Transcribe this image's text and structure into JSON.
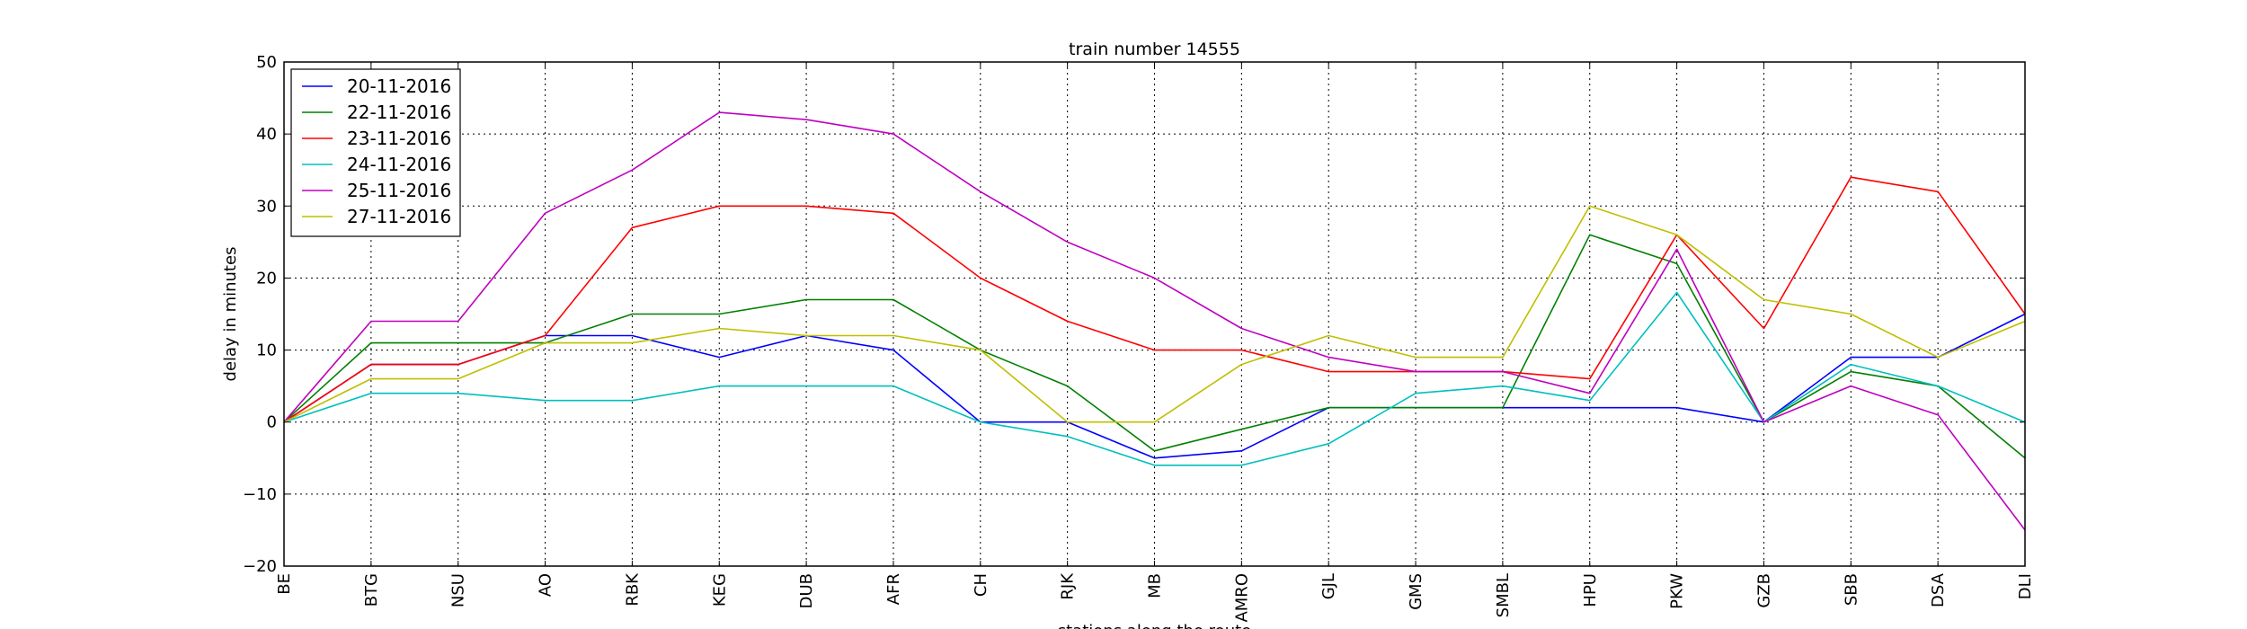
{
  "chart_data": {
    "type": "line",
    "title": "train number 14555",
    "xlabel": "stations along the route",
    "ylabel": "delay in minutes",
    "ylim": [
      -20,
      50
    ],
    "yticks": [
      -20,
      -10,
      0,
      10,
      20,
      30,
      40,
      50
    ],
    "grid": true,
    "legend_position": "top-left",
    "categories": [
      "BE",
      "BTG",
      "NSU",
      "AO",
      "RBK",
      "KEG",
      "DUB",
      "AFR",
      "CH",
      "RJK",
      "MB",
      "AMRO",
      "GJL",
      "GMS",
      "SMBL",
      "HPU",
      "PKW",
      "GZB",
      "SBB",
      "DSA",
      "DLI"
    ],
    "series": [
      {
        "name": "20-11-2016",
        "color": "#0000ff",
        "values": [
          0,
          8,
          8,
          12,
          12,
          9,
          12,
          10,
          0,
          0,
          -5,
          -4,
          2,
          2,
          2,
          2,
          2,
          0,
          9,
          9,
          15
        ]
      },
      {
        "name": "22-11-2016",
        "color": "#008000",
        "values": [
          0,
          11,
          11,
          11,
          15,
          15,
          17,
          17,
          10,
          5,
          -4,
          -1,
          2,
          2,
          2,
          26,
          22,
          0,
          7,
          5,
          -5
        ]
      },
      {
        "name": "23-11-2016",
        "color": "#ff0000",
        "values": [
          0,
          8,
          8,
          12,
          27,
          30,
          30,
          29,
          20,
          14,
          10,
          10,
          7,
          7,
          7,
          6,
          26,
          13,
          34,
          32,
          15
        ]
      },
      {
        "name": "24-11-2016",
        "color": "#00bfbf",
        "values": [
          0,
          4,
          4,
          3,
          3,
          5,
          5,
          5,
          0,
          -2,
          -6,
          -6,
          -3,
          4,
          5,
          3,
          18,
          0,
          8,
          5,
          0
        ]
      },
      {
        "name": "25-11-2016",
        "color": "#bf00bf",
        "values": [
          0,
          14,
          14,
          29,
          35,
          43,
          42,
          40,
          32,
          25,
          20,
          13,
          9,
          7,
          7,
          4,
          24,
          0,
          5,
          1,
          -15
        ]
      },
      {
        "name": "27-11-2016",
        "color": "#bfbf00",
        "values": [
          0,
          6,
          6,
          11,
          11,
          13,
          12,
          12,
          10,
          0,
          0,
          8,
          12,
          9,
          9,
          30,
          26,
          17,
          15,
          9,
          14
        ]
      }
    ]
  }
}
